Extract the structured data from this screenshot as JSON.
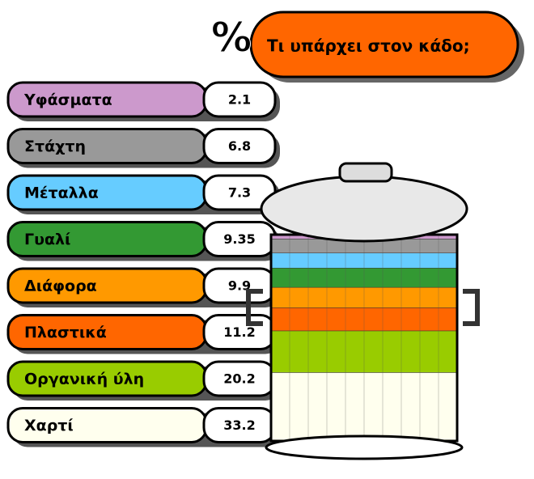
{
  "chart_data": {
    "type": "bin",
    "unit": "%",
    "title": "Τι υπάρχει στον κάδο;",
    "title_color": "#ff6600",
    "categories": [
      "Υφάσματα",
      "Στάχτη",
      "Μέταλλα",
      "Γυαλί",
      "Διάφορα",
      "Πλαστικά",
      "Οργανική ύλη",
      "Χαρτί"
    ],
    "values": [
      2.1,
      6.8,
      7.3,
      9.35,
      9.9,
      11.2,
      20.2,
      33.2
    ],
    "colors": [
      "#cc99cc",
      "#999999",
      "#66ccff",
      "#339933",
      "#ff9900",
      "#ff6600",
      "#99cc00",
      "#ffffee"
    ]
  }
}
